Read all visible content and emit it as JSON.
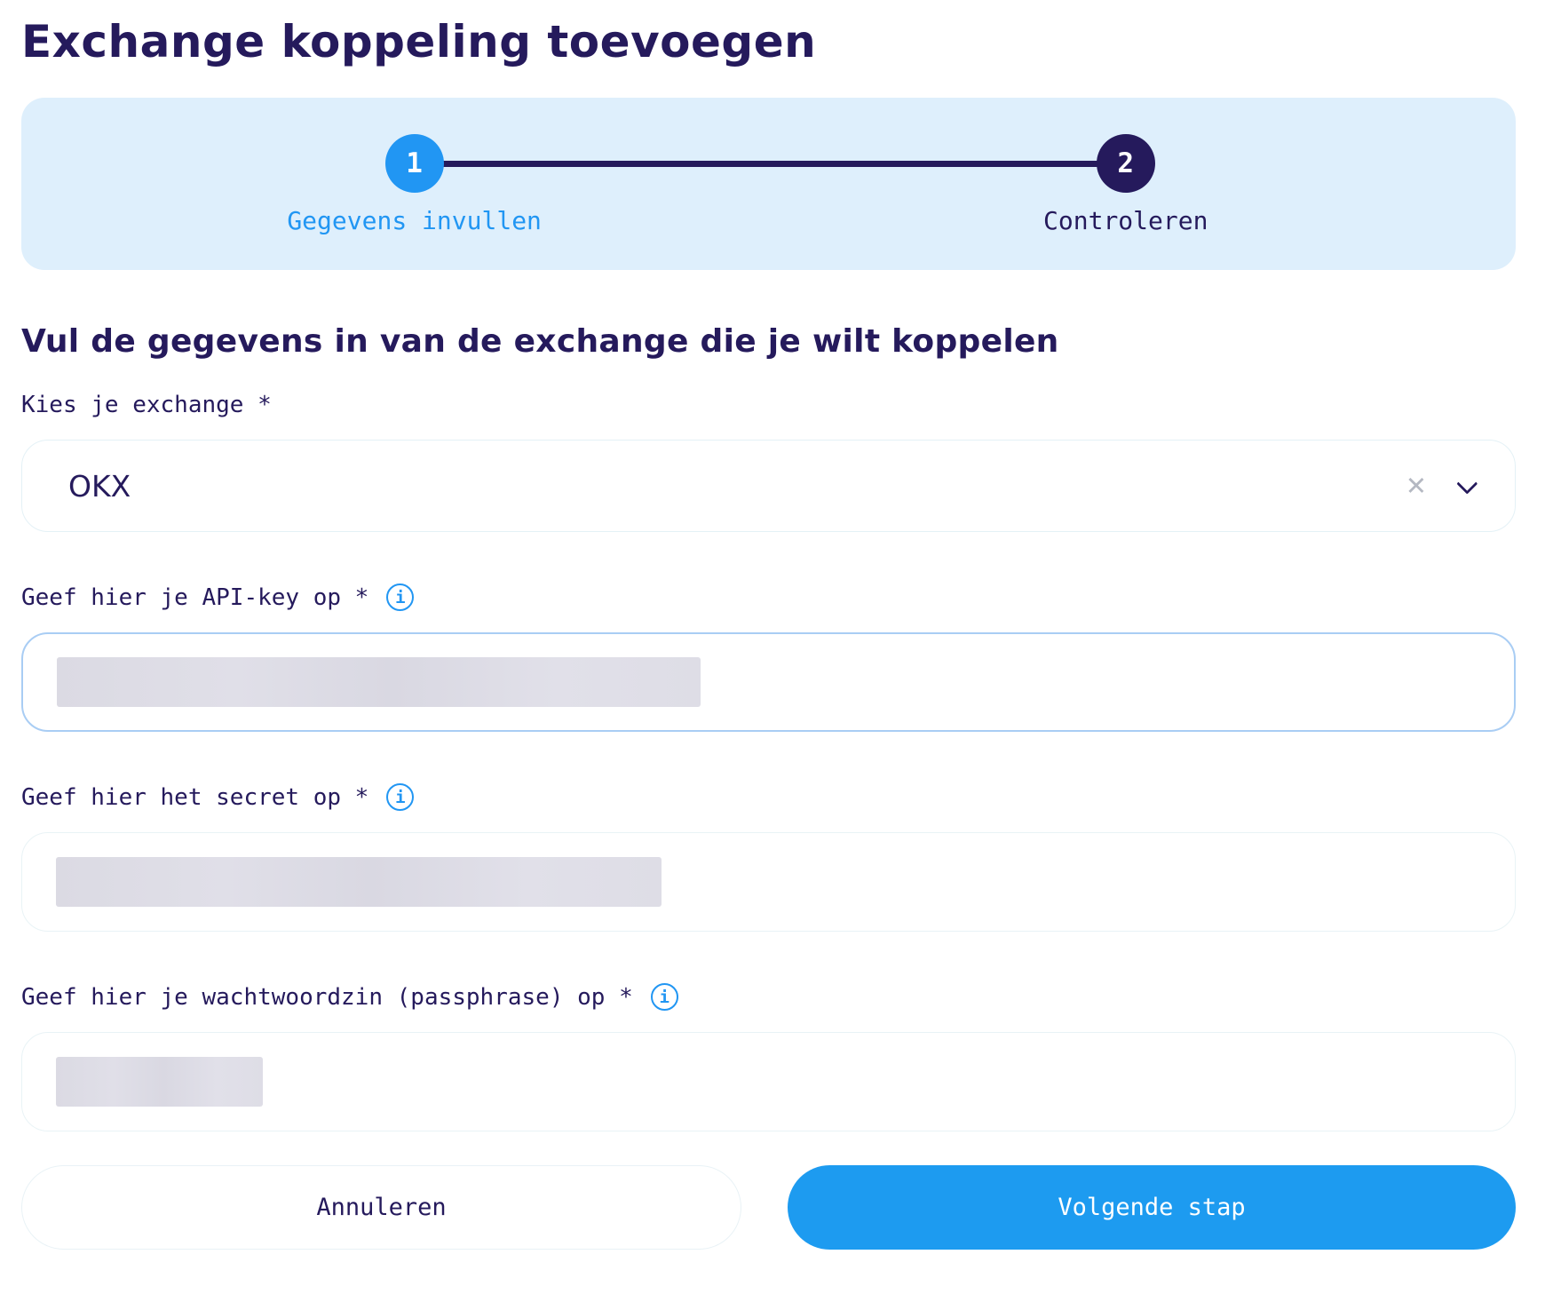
{
  "page": {
    "title": "Exchange koppeling toevoegen"
  },
  "stepper": {
    "steps": [
      {
        "number": "1",
        "label": "Gegevens invullen",
        "state": "current"
      },
      {
        "number": "2",
        "label": "Controleren",
        "state": "upcoming"
      }
    ]
  },
  "form": {
    "heading": "Vul de gegevens in van de exchange die je wilt koppelen",
    "fields": {
      "exchange": {
        "label": "Kies je exchange *",
        "value": "OKX",
        "clearable": true
      },
      "api_key": {
        "label": "Geef hier je API-key op *",
        "has_info_icon": true,
        "value_state": "redacted"
      },
      "secret": {
        "label": "Geef hier het secret op *",
        "has_info_icon": true,
        "value_state": "redacted"
      },
      "passphrase": {
        "label": "Geef hier je wachtwoordzin (passphrase) op *",
        "has_info_icon": true,
        "value_state": "redacted"
      }
    }
  },
  "actions": {
    "cancel_label": "Annuleren",
    "next_label": "Volgende stap"
  },
  "icons": {
    "info_glyph": "i",
    "clear_glyph": "✕"
  },
  "colors": {
    "heading_navy": "#251a5c",
    "accent_blue": "#2196f3",
    "next_button_blue": "#1d9bf0",
    "stepper_background": "#deeffc",
    "focused_input_border": "#a9cdf4",
    "redacted_block": "#dcdbe4"
  }
}
